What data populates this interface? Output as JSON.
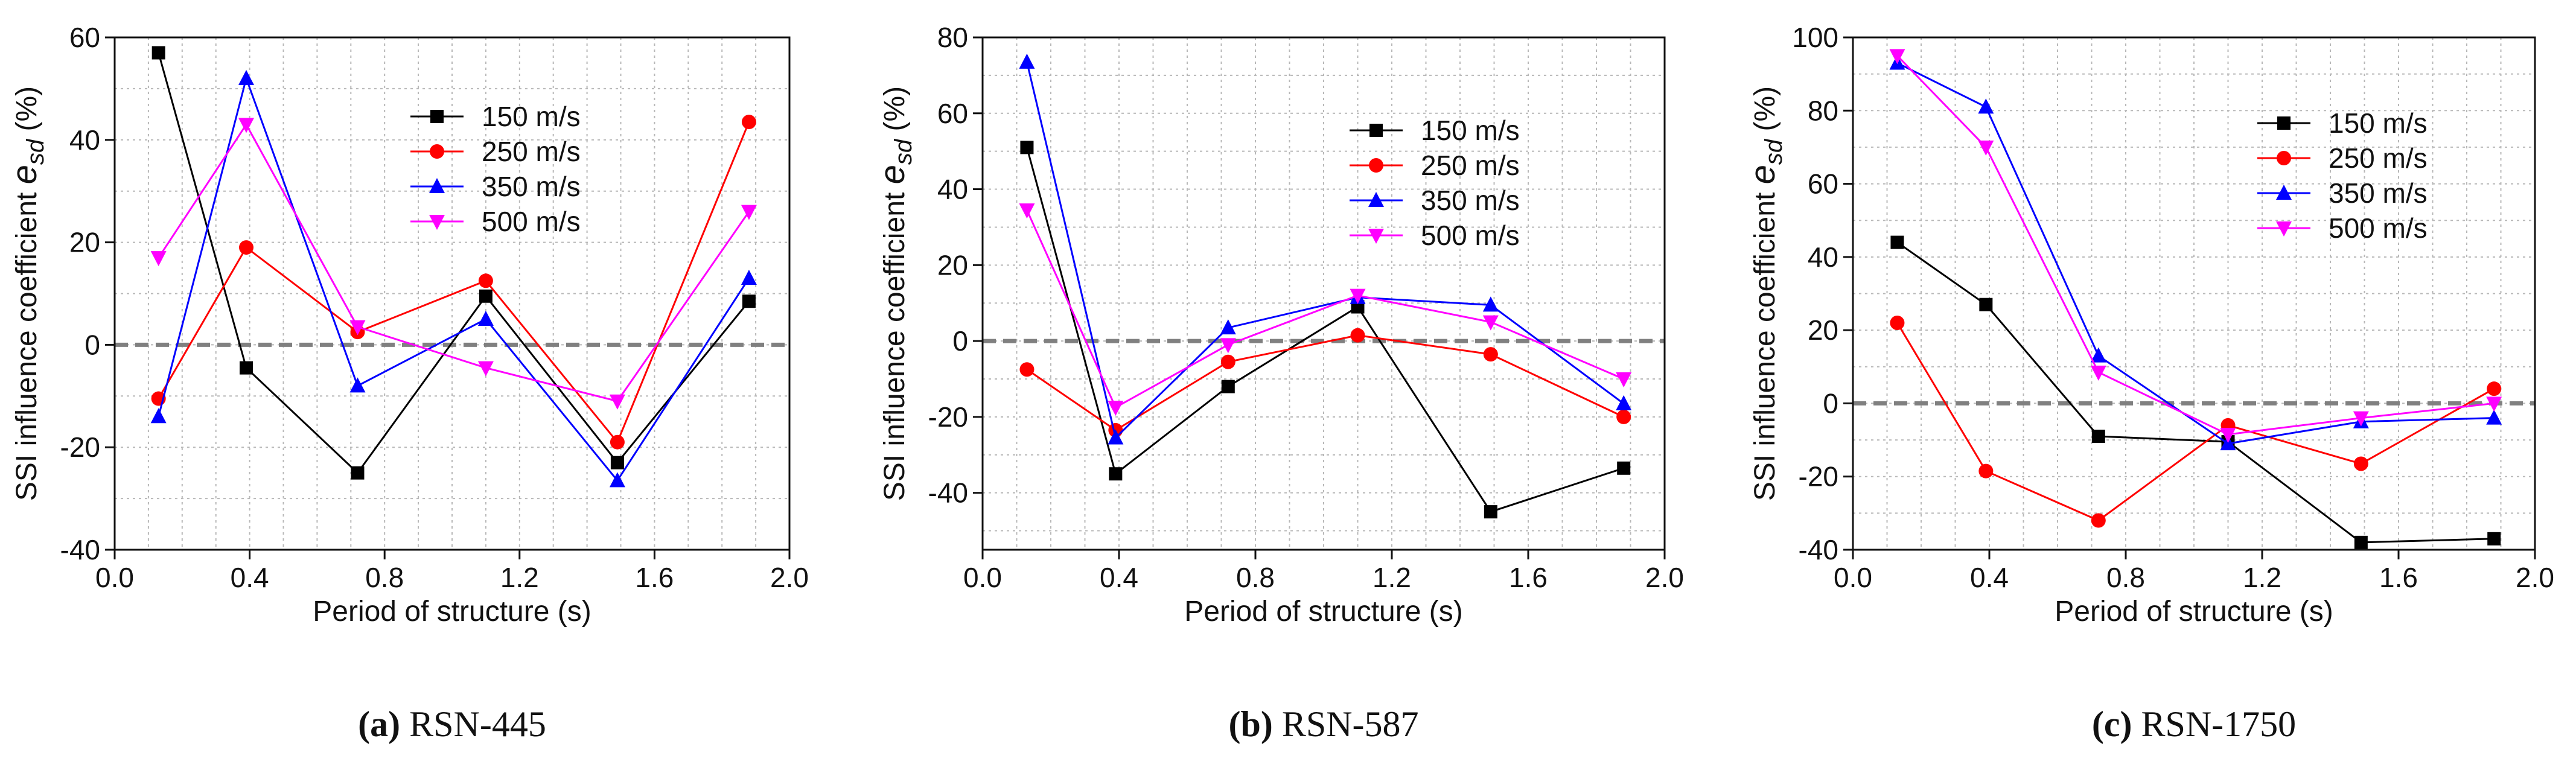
{
  "figure": {
    "panels": [
      {
        "label": "(a)",
        "title": "RSN-445"
      },
      {
        "label": "(b)",
        "title": "RSN-587"
      },
      {
        "label": "(c)",
        "title": "RSN-1750"
      }
    ]
  },
  "colors": {
    "150 m/s": "#000000",
    "250 m/s": "#ff0000",
    "350 m/s": "#0000ff",
    "500 m/s": "#ff00ff",
    "zero_line": "#808080",
    "grid": "#b8b8b8"
  },
  "chart_data": [
    {
      "type": "line",
      "title": "(a) RSN-445",
      "xlabel": "Period of structure (s)",
      "ylabel": "SSI influence coefficient e_sd (%)",
      "ylabel_main": "SSI influence coefficient ",
      "ylabel_var": "e",
      "ylabel_sub": "sd",
      "ylabel_unit": " (%)",
      "xlim": [
        0,
        2
      ],
      "ylim": [
        -40,
        60
      ],
      "xticks": [
        0.0,
        0.4,
        0.8,
        1.2,
        1.6,
        2.0
      ],
      "xtick_labels": [
        "0.0",
        "0.4",
        "0.8",
        "1.2",
        "1.6",
        "2.0"
      ],
      "yticks": [
        -40,
        -20,
        0,
        20,
        40,
        60
      ],
      "ytick_labels": [
        "-40",
        "-20",
        "0",
        "20",
        "40",
        "60"
      ],
      "grid": true,
      "reference_line": 0,
      "legend_position": "top-right",
      "x": [
        0.13,
        0.39,
        0.72,
        1.1,
        1.49,
        1.88
      ],
      "series": [
        {
          "name": "150 m/s",
          "marker": "square",
          "values": [
            57,
            -4.5,
            -25,
            9.5,
            -23,
            8.5
          ]
        },
        {
          "name": "250 m/s",
          "marker": "circle",
          "values": [
            -10.5,
            19,
            2.5,
            12.5,
            -19,
            43.5
          ]
        },
        {
          "name": "350 m/s",
          "marker": "triangle-up",
          "values": [
            -14,
            52,
            -8,
            5,
            -26.5,
            13
          ]
        },
        {
          "name": "500 m/s",
          "marker": "triangle-down",
          "values": [
            17,
            43,
            3.5,
            -4.5,
            -11,
            26
          ]
        }
      ]
    },
    {
      "type": "line",
      "title": "(b) RSN-587",
      "xlabel": "Period of structure (s)",
      "ylabel": "SSI influence coefficient e_sd (%)",
      "ylabel_main": "SSI influence coefficient ",
      "ylabel_var": "e",
      "ylabel_sub": "sd",
      "ylabel_unit": " (%)",
      "xlim": [
        0,
        2
      ],
      "ylim": [
        -55,
        80
      ],
      "xticks": [
        0.0,
        0.4,
        0.8,
        1.2,
        1.6,
        2.0
      ],
      "xtick_labels": [
        "0.0",
        "0.4",
        "0.8",
        "1.2",
        "1.6",
        "2.0"
      ],
      "yticks": [
        -40,
        -20,
        0,
        20,
        40,
        60,
        80
      ],
      "ytick_labels": [
        "-40",
        "-20",
        "0",
        "20",
        "40",
        "60",
        "80"
      ],
      "grid": true,
      "reference_line": 0,
      "legend_position": "top-right",
      "x": [
        0.13,
        0.39,
        0.72,
        1.1,
        1.49,
        1.88
      ],
      "series": [
        {
          "name": "150 m/s",
          "marker": "square",
          "values": [
            51,
            -35,
            -12,
            9,
            -45,
            -33.5
          ]
        },
        {
          "name": "250 m/s",
          "marker": "circle",
          "values": [
            -7.5,
            -23.5,
            -5.5,
            1.5,
            -3.5,
            -20
          ]
        },
        {
          "name": "350 m/s",
          "marker": "triangle-up",
          "values": [
            73.5,
            -25.5,
            3.5,
            11.5,
            9.5,
            -16.5
          ]
        },
        {
          "name": "500 m/s",
          "marker": "triangle-down",
          "values": [
            34.5,
            -17.5,
            -1,
            12,
            5,
            -10
          ]
        }
      ]
    },
    {
      "type": "line",
      "title": "(c) RSN-1750",
      "xlabel": "Period of structure (s)",
      "ylabel": "SSI influence coefficient e_sd (%)",
      "ylabel_main": "SSI influence coefficient ",
      "ylabel_var": "e",
      "ylabel_sub": "sd",
      "ylabel_unit": " (%)",
      "xlim": [
        0,
        2
      ],
      "ylim": [
        -40,
        100
      ],
      "xticks": [
        0.0,
        0.4,
        0.8,
        1.2,
        1.6,
        2.0
      ],
      "xtick_labels": [
        "0.0",
        "0.4",
        "0.8",
        "1.2",
        "1.6",
        "2.0"
      ],
      "yticks": [
        -40,
        -20,
        0,
        20,
        40,
        60,
        80,
        100
      ],
      "ytick_labels": [
        "-40",
        "-20",
        "0",
        "20",
        "40",
        "60",
        "80",
        "100"
      ],
      "grid": true,
      "reference_line": 0,
      "legend_position": "top-right",
      "x": [
        0.13,
        0.39,
        0.72,
        1.1,
        1.49,
        1.88
      ],
      "series": [
        {
          "name": "150 m/s",
          "marker": "square",
          "values": [
            44,
            27,
            -9,
            -10.5,
            -38,
            -37
          ]
        },
        {
          "name": "250 m/s",
          "marker": "circle",
          "values": [
            22,
            -18.5,
            -32,
            -6,
            -16.5,
            4
          ]
        },
        {
          "name": "350 m/s",
          "marker": "triangle-up",
          "values": [
            93,
            81,
            13,
            -11,
            -5,
            -4
          ]
        },
        {
          "name": "500 m/s",
          "marker": "triangle-down",
          "values": [
            95,
            70,
            8.5,
            -8.5,
            -4,
            0
          ]
        }
      ]
    }
  ]
}
